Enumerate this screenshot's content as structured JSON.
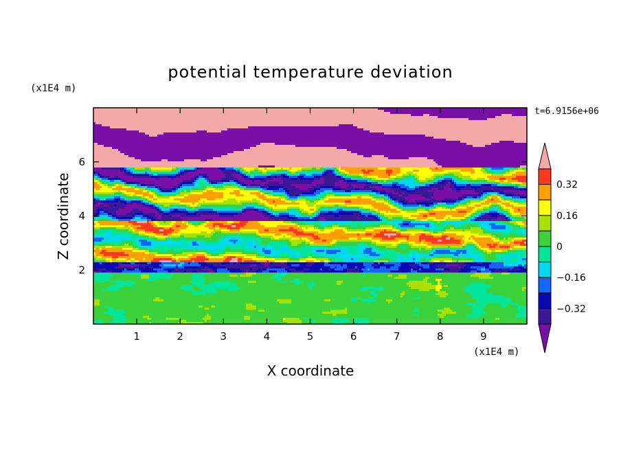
{
  "chart_data": {
    "type": "heatmap",
    "title": "potential temperature deviation",
    "xlabel": "X coordinate",
    "ylabel": "Z coordinate",
    "x_unit": "(x1E4 m)",
    "y_unit": "(x1E4 m)",
    "time_label": "t=6.9156e+06",
    "xlim": [
      0,
      10
    ],
    "ylim": [
      0,
      8
    ],
    "x_ticks": [
      "1",
      "2",
      "3",
      "4",
      "5",
      "6",
      "7",
      "8",
      "9"
    ],
    "y_ticks": [
      "2",
      "4",
      "6"
    ],
    "x_tick_values": [
      1,
      2,
      3,
      4,
      5,
      6,
      7,
      8,
      9
    ],
    "y_tick_values": [
      2,
      4,
      6
    ],
    "colorbar": {
      "levels": [
        -0.4,
        -0.32,
        -0.24,
        -0.16,
        -0.08,
        0,
        0.08,
        0.16,
        0.24,
        0.32,
        0.4
      ],
      "labels": [
        "0.32",
        "0.16",
        "0",
        "−0.16",
        "−0.32"
      ],
      "label_values": [
        0.32,
        0.16,
        0,
        -0.16,
        -0.32
      ],
      "colors": [
        "#7a0fa8",
        "#3a1896",
        "#0a0ab4",
        "#1464ff",
        "#00d8f0",
        "#00e59a",
        "#3cd23c",
        "#a8e000",
        "#ffff00",
        "#ff9f00",
        "#ff3a20",
        "#f4a8a8"
      ],
      "extend": "both"
    },
    "field_description_bands": [
      {
        "z": [
          0,
          1.9
        ],
        "dominant_level": 0
      },
      {
        "z": [
          1.9,
          2.2
        ],
        "dominant_level": -0.32
      },
      {
        "z": [
          2.2,
          3.8
        ],
        "dominant_level": 0.24
      },
      {
        "z": [
          3.8,
          5.8
        ],
        "dominant_level": -0.24
      },
      {
        "z": [
          5.8,
          8
        ],
        "dominant_level": 0.4
      }
    ]
  }
}
